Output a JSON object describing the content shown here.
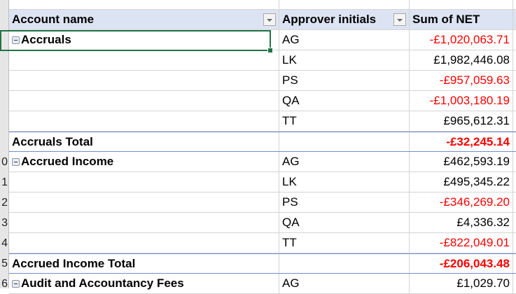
{
  "row_numbers": [
    "0",
    "1",
    "2",
    "3",
    "4",
    "5",
    "6"
  ],
  "headers": {
    "account": "Account name",
    "approver": "Approver initials",
    "sum": "Sum of NET"
  },
  "groups": [
    {
      "name": "Accruals",
      "rows": [
        {
          "approver": "AG",
          "value": "-£1,020,063.71",
          "negative": true
        },
        {
          "approver": "LK",
          "value": "£1,982,446.08",
          "negative": false
        },
        {
          "approver": "PS",
          "value": "-£957,059.63",
          "negative": true
        },
        {
          "approver": "QA",
          "value": "-£1,003,180.19",
          "negative": true
        },
        {
          "approver": "TT",
          "value": "£965,612.31",
          "negative": false
        }
      ],
      "total_label": "Accruals Total",
      "total": "-£32,245.14",
      "total_negative": true
    },
    {
      "name": "Accrued Income",
      "rows": [
        {
          "approver": "AG",
          "value": "£462,593.19",
          "negative": false
        },
        {
          "approver": "LK",
          "value": "£495,345.22",
          "negative": false
        },
        {
          "approver": "PS",
          "value": "-£346,269.20",
          "negative": true
        },
        {
          "approver": "QA",
          "value": "£4,336.32",
          "negative": false
        },
        {
          "approver": "TT",
          "value": "-£822,049.01",
          "negative": true
        }
      ],
      "total_label": "Accrued Income Total",
      "total": "-£206,043.48",
      "total_negative": true
    },
    {
      "name": "Audit and Accountancy Fees",
      "rows": [
        {
          "approver": "AG",
          "value": "£1,029.70",
          "negative": false
        }
      ]
    }
  ],
  "colors": {
    "header_bg": "#dce3f2",
    "negative": "#ff0000",
    "selection": "#217346",
    "total_border": "#6f8fcc"
  }
}
